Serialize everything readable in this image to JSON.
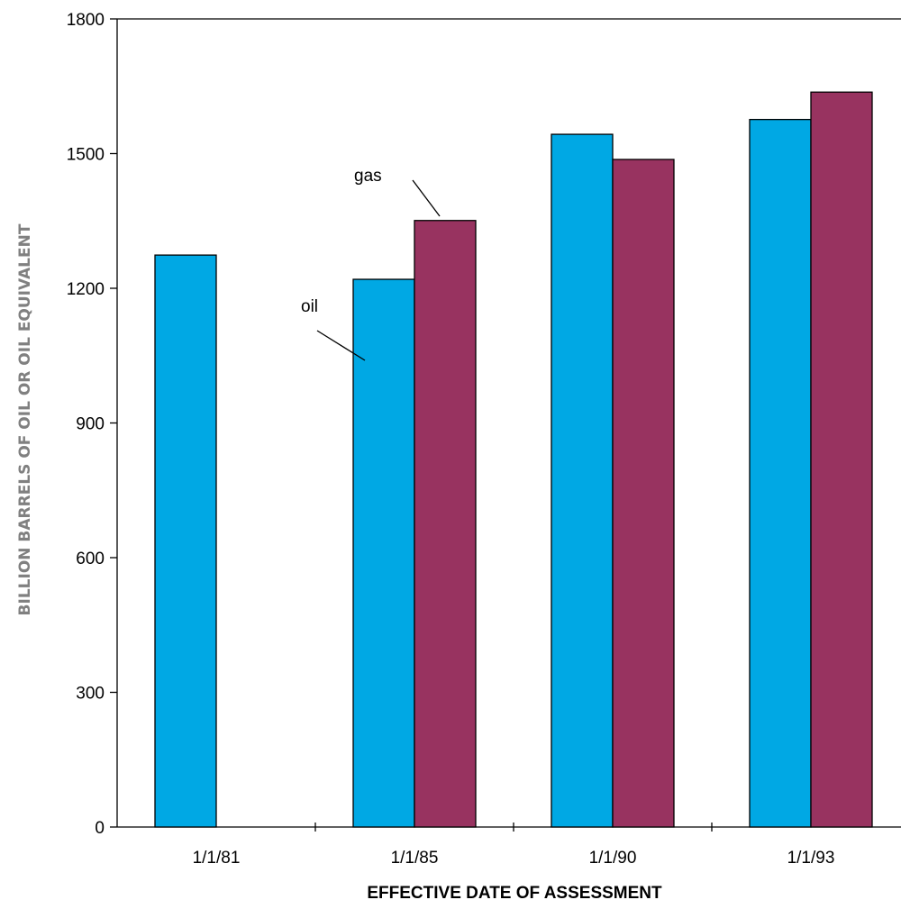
{
  "chart_data": {
    "type": "bar",
    "title": "",
    "xlabel": "EFFECTIVE DATE OF ASSESSMENT",
    "ylabel": "BILLION BARRELS OF OIL OR OIL EQUIVALENT",
    "categories": [
      "1/1/81",
      "1/1/85",
      "1/1/90",
      "1/1/93"
    ],
    "ylim": [
      0,
      1800
    ],
    "yticks": [
      0,
      300,
      600,
      900,
      1200,
      1500,
      1800
    ],
    "grid": false,
    "legend": "none",
    "series": [
      {
        "name": "oil",
        "color": "#00a8e4",
        "values": [
          1274,
          1220,
          1543,
          1576
        ]
      },
      {
        "name": "gas",
        "color": "#983360",
        "values": [
          null,
          1351,
          1487,
          1637
        ]
      }
    ],
    "annotations": [
      {
        "text": "gas",
        "series": "gas",
        "category": "1/1/85"
      },
      {
        "text": "oil",
        "series": "oil",
        "category": "1/1/85"
      }
    ]
  }
}
